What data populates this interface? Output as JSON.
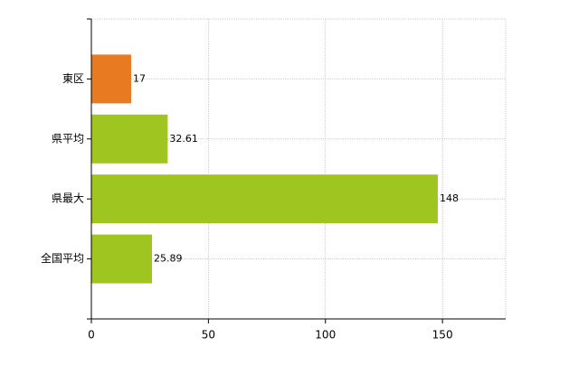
{
  "chart_data": {
    "type": "hbar",
    "categories": [
      "東区",
      "県平均",
      "県最大",
      "全国平均"
    ],
    "values": [
      17,
      32.61,
      148,
      25.89
    ],
    "colors": [
      "#e87b22",
      "#9fc520",
      "#9fc520",
      "#9fc520"
    ],
    "xlim": [
      0,
      177
    ],
    "xticks": [
      0,
      50,
      100,
      150
    ],
    "grid": true
  }
}
